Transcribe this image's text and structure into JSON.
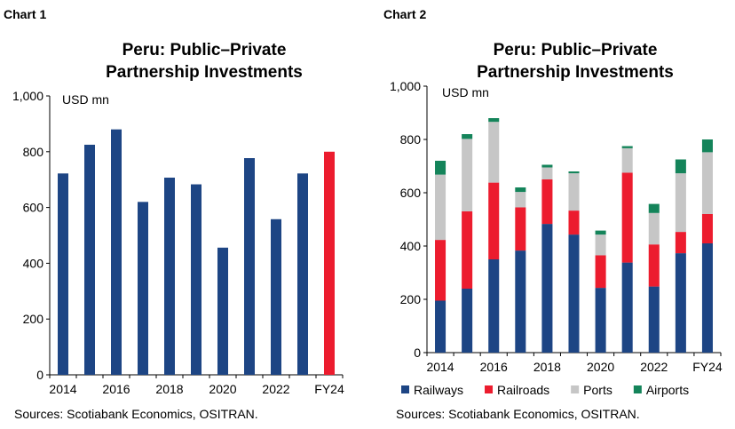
{
  "chart1": {
    "label": "Chart 1",
    "title_line1": "Peru: Public–Private",
    "title_line2": "Partnership Investments",
    "unit": "USD mn",
    "source": "Sources: Scotiabank Economics, OSITRAN."
  },
  "chart2": {
    "label": "Chart 2",
    "title_line1": "Peru: Public–Private",
    "title_line2": "Partnership Investments",
    "unit": "USD mn",
    "source": "Sources: Scotiabank Economics, OSITRAN."
  },
  "chart_data": [
    {
      "type": "bar",
      "title": "Peru: Public–Private Partnership Investments",
      "ylabel": "USD mn",
      "ylim": [
        0,
        1000
      ],
      "yticks": [
        0,
        200,
        400,
        600,
        800,
        1000
      ],
      "ytick_labels": [
        "0",
        "200",
        "400",
        "600",
        "800",
        "1,000"
      ],
      "categories": [
        "2014",
        "2015",
        "2016",
        "2017",
        "2018",
        "2019",
        "2020",
        "2021",
        "2022",
        "2023",
        "FY24"
      ],
      "xtick_labels": [
        "2014",
        "",
        "2016",
        "",
        "2018",
        "",
        "2020",
        "",
        "2022",
        "",
        "FY24"
      ],
      "values": [
        722,
        825,
        880,
        620,
        707,
        683,
        456,
        777,
        558,
        722,
        800
      ],
      "colors": [
        "#1d4584",
        "#1d4584",
        "#1d4584",
        "#1d4584",
        "#1d4584",
        "#1d4584",
        "#1d4584",
        "#1d4584",
        "#1d4584",
        "#1d4584",
        "#ec1c2e"
      ],
      "grid": false
    },
    {
      "type": "bar",
      "stacked": true,
      "title": "Peru: Public–Private Partnership Investments",
      "ylabel": "USD mn",
      "ylim": [
        0,
        1000
      ],
      "yticks": [
        0,
        200,
        400,
        600,
        800,
        1000
      ],
      "ytick_labels": [
        "0",
        "200",
        "400",
        "600",
        "800",
        "1,000"
      ],
      "categories": [
        "2014",
        "2015",
        "2016",
        "2017",
        "2018",
        "2019",
        "2020",
        "2021",
        "2022",
        "2023",
        "FY24"
      ],
      "xtick_labels": [
        "2014",
        "",
        "2016",
        "",
        "2018",
        "",
        "2020",
        "",
        "2022",
        "",
        "FY24"
      ],
      "legend_position": "bottom",
      "grid": false,
      "series": [
        {
          "name": "Railways",
          "color": "#1d4584",
          "values": [
            195,
            240,
            350,
            383,
            483,
            443,
            243,
            338,
            248,
            373,
            410
          ]
        },
        {
          "name": "Railroads",
          "color": "#ec1c2e",
          "values": [
            228,
            290,
            288,
            162,
            167,
            90,
            122,
            337,
            158,
            80,
            110
          ]
        },
        {
          "name": "Ports",
          "color": "#c6c6c6",
          "values": [
            245,
            272,
            228,
            58,
            45,
            140,
            78,
            92,
            118,
            220,
            232
          ]
        },
        {
          "name": "Airports",
          "color": "#14845a",
          "values": [
            52,
            18,
            14,
            17,
            10,
            7,
            15,
            8,
            34,
            52,
            48
          ]
        }
      ]
    }
  ]
}
